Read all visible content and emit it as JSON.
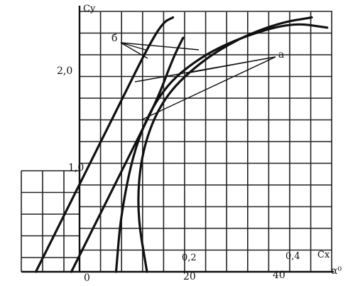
{
  "chart_data": {
    "type": "line",
    "title": "",
    "y_axis_label": "Cy",
    "x_axis_label_top": "Cx",
    "x_axis_label_bottom": "α⁰",
    "y_ticks": [
      "1,0",
      "2,0"
    ],
    "x_top_ticks": [
      "0,2",
      "0,4"
    ],
    "x_bottom_ticks": [
      "0",
      "20",
      "40"
    ],
    "annotations": [
      "б",
      "а"
    ],
    "grid": true,
    "series_note": "curves б: Cy vs α; curves а: Cy vs Cx (drag polars)",
    "series": [
      {
        "name": "б",
        "axis": "α",
        "x": [
          -10,
          -4,
          2,
          8,
          12,
          15,
          17
        ],
        "y": [
          0,
          0.6,
          1.2,
          1.8,
          2.2,
          2.45,
          2.5
        ]
      },
      {
        "name": "б",
        "axis": "α",
        "x": [
          -3,
          3,
          9,
          14,
          17,
          19
        ],
        "y": [
          0,
          0.6,
          1.2,
          1.7,
          2.1,
          2.3
        ]
      },
      {
        "name": "а",
        "axis": "Cx",
        "x": [
          0.06,
          0.07,
          0.1,
          0.15,
          0.22,
          0.3,
          0.4,
          0.47
        ],
        "y": [
          0,
          0.6,
          1.3,
          1.8,
          2.1,
          2.3,
          2.45,
          2.4
        ]
      },
      {
        "name": "а",
        "axis": "Cx",
        "x": [
          0.12,
          0.1,
          0.11,
          0.15,
          0.22,
          0.3,
          0.38,
          0.44
        ],
        "y": [
          0,
          0.6,
          1.2,
          1.7,
          2.05,
          2.3,
          2.45,
          2.5
        ]
      }
    ]
  }
}
